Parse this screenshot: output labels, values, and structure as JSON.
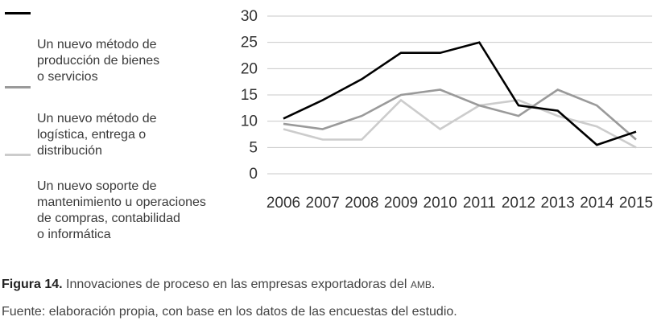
{
  "chart_data": {
    "type": "line",
    "title": "",
    "xlabel": "",
    "ylabel": "",
    "x": [
      2006,
      2007,
      2008,
      2009,
      2010,
      2011,
      2012,
      2013,
      2014,
      2015
    ],
    "x_tick_labels": [
      "2006",
      "2007",
      "2008",
      "2009",
      "2010",
      "2011",
      "2012",
      "2013",
      "2014",
      "2015"
    ],
    "ylim": [
      0,
      30
    ],
    "y_ticks": [
      0,
      5,
      10,
      15,
      20,
      25,
      30
    ],
    "y_tick_labels": [
      "0",
      "5",
      "10",
      "15",
      "20",
      "25",
      "30"
    ],
    "grid": "horizontal",
    "legend_position": "left",
    "series": [
      {
        "name": "Un nuevo método de\nproducción de bienes\no servicios",
        "color": "#000000",
        "values": [
          10.5,
          14,
          18,
          23,
          23,
          25,
          13,
          12,
          5.5,
          8
        ]
      },
      {
        "name": "Un nuevo método de\nlogística, entrega o\ndistribución",
        "color": "#9a9a9a",
        "values": [
          9.5,
          8.5,
          11,
          15,
          16,
          13,
          11,
          16,
          13,
          6.5
        ]
      },
      {
        "name": "Un nuevo soporte de\nmantenimiento u operaciones\nde compras, contabilidad\no informática",
        "color": "#cccccc",
        "values": [
          8.5,
          6.5,
          6.5,
          14,
          8.5,
          13,
          14,
          11,
          9,
          5
        ]
      }
    ]
  },
  "caption": {
    "label": "Figura 14.",
    "text": " Innovaciones de proceso en las empresas exportadoras del ",
    "abbr": "AMB",
    "end": "."
  },
  "source": "Fuente: elaboración propia, con base en los datos de las encuestas del estudio."
}
